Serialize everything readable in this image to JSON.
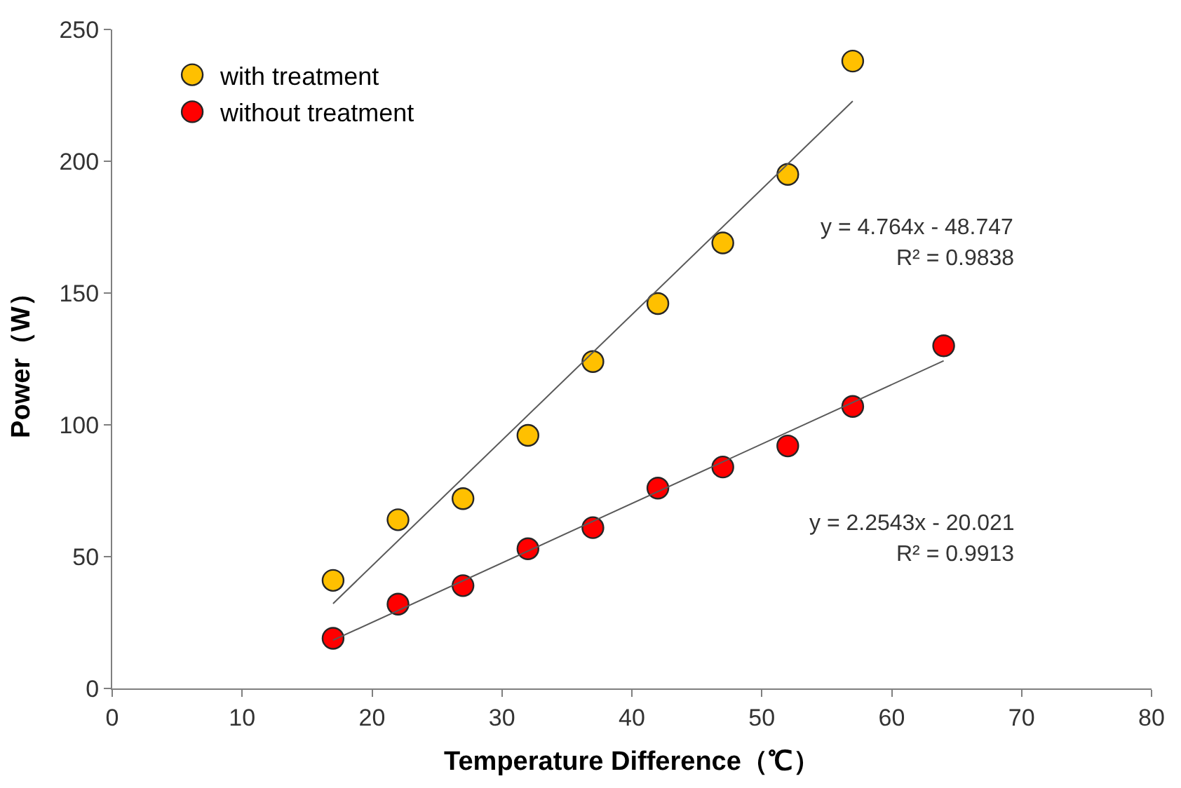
{
  "chart_data": {
    "type": "scatter",
    "xlabel": "Temperature Difference（℃）",
    "ylabel": "Power（W）",
    "xlim": [
      0,
      80
    ],
    "xticks": [
      0,
      10,
      20,
      30,
      40,
      50,
      60,
      70,
      80
    ],
    "ylim": [
      0,
      250
    ],
    "yticks": [
      0,
      50,
      100,
      150,
      200,
      250
    ],
    "grid": false,
    "legend": "top left",
    "marker": "circle",
    "series": [
      {
        "name": "with treatment",
        "color": "#ffc000",
        "x": [
          17,
          22,
          27,
          32,
          37,
          42,
          47,
          52,
          57
        ],
        "values": [
          41,
          64,
          72,
          96,
          124,
          146,
          169,
          195,
          238
        ]
      },
      {
        "name": "without treatment",
        "color": "#ff0000",
        "x": [
          17,
          22,
          27,
          32,
          37,
          42,
          47,
          52,
          57,
          64
        ],
        "values": [
          19,
          32,
          39,
          53,
          61,
          76,
          84,
          92,
          107,
          130
        ]
      },
      {
        "type": "line",
        "color": "#595959",
        "marker": "none",
        "x": [
          17,
          57
        ],
        "values": [
          32.2,
          222.8
        ]
      },
      {
        "type": "line",
        "color": "#595959",
        "marker": "none",
        "x": [
          17,
          64
        ],
        "values": [
          18.3,
          124.3
        ]
      }
    ],
    "annotations": [
      "y = 4.764x - 48.747",
      "R² = 0.9838",
      "y = 2.2543x - 20.021",
      "R² = 0.9913"
    ]
  }
}
